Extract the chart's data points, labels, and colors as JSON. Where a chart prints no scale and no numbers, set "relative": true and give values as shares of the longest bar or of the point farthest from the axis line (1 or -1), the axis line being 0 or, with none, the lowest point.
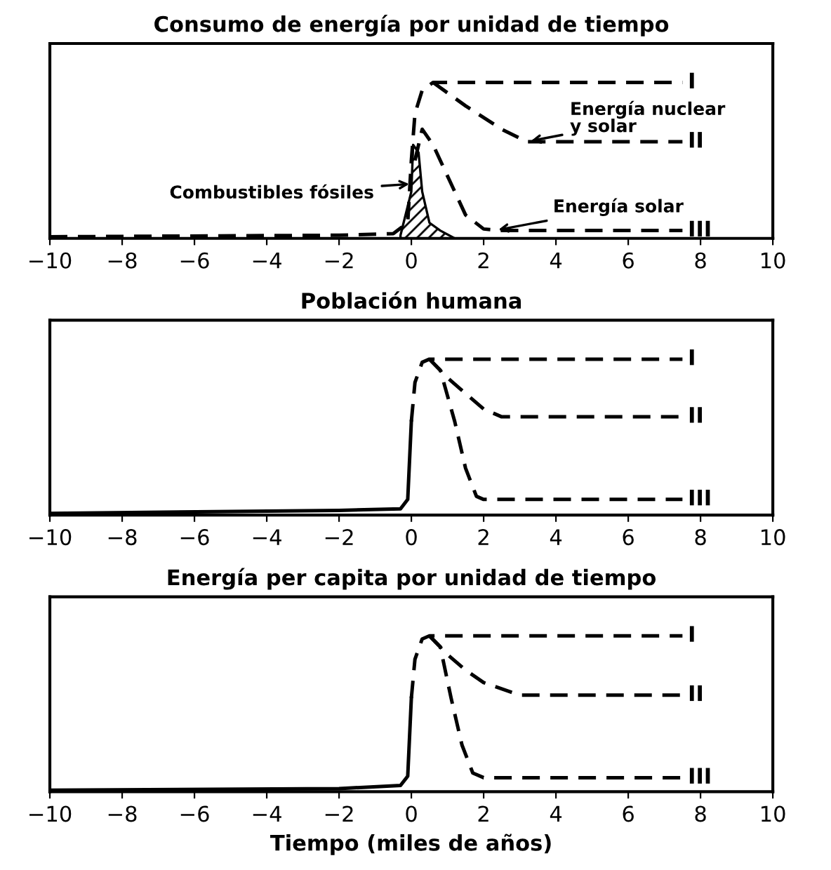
{
  "chart_data": [
    {
      "type": "line",
      "title": "Consumo de energía por unidad de tiempo",
      "relative": true,
      "xlim": [
        -10,
        10
      ],
      "xticks": [
        -10,
        -8,
        -6,
        -4,
        -2,
        0,
        2,
        4,
        6,
        8,
        10
      ],
      "legend": false,
      "line_style": "dashed",
      "grid": false,
      "series": [
        {
          "type": "area",
          "color": "#000000",
          "x": [
            -0.3,
            0,
            0.05,
            0.2,
            0.3,
            0.5,
            0.8,
            1.2
          ],
          "values": [
            0.02,
            0.3,
            0.6,
            0.55,
            0.3,
            0.1,
            0.05,
            0
          ]
        },
        {
          "name": "I",
          "color": "#000000",
          "x": [
            -10,
            -2,
            -0.5,
            -0.1,
            0,
            0.1,
            0.3,
            0.6,
            7.5
          ],
          "values": [
            0.01,
            0.02,
            0.03,
            0.1,
            0.5,
            0.8,
            0.95,
            1,
            1
          ]
        },
        {
          "name": "II",
          "color": "#000000",
          "x": [
            0.6,
            1.5,
            2.5,
            3.2,
            7.5
          ],
          "values": [
            1,
            0.85,
            0.7,
            0.62,
            0.62
          ]
        },
        {
          "name": "III",
          "color": "#000000",
          "x": [
            0.1,
            0.3,
            0.6,
            1,
            1.5,
            2,
            2.5,
            7.5
          ],
          "values": [
            0.5,
            0.7,
            0.6,
            0.4,
            0.15,
            0.06,
            0.05,
            0.05
          ]
        }
      ],
      "annotations": [
        {
          "text": "Energía nuclear\ny solar",
          "x": 3.2,
          "y": 0.62
        },
        {
          "text": "Combustibles fósiles",
          "x": 0.05,
          "y": 0.35
        },
        {
          "text": "Energía solar",
          "x": 2.3,
          "y": 0.05
        }
      ]
    },
    {
      "type": "line",
      "title": "Población humana",
      "relative": true,
      "xlim": [
        -10,
        10
      ],
      "xticks": [
        -10,
        -8,
        -6,
        -4,
        -2,
        0,
        2,
        4,
        6,
        8,
        10
      ],
      "legend": false,
      "line_style": "dashed",
      "grid": false,
      "series": [
        {
          "color": "#000000",
          "line_style": "solid",
          "x": [
            -10,
            -2,
            -0.3,
            -0.1,
            0
          ],
          "values": [
            0.01,
            0.03,
            0.04,
            0.1,
            0.6
          ]
        },
        {
          "name": "I",
          "color": "#000000",
          "x": [
            0,
            0.1,
            0.3,
            0.5,
            7.5
          ],
          "values": [
            0.6,
            0.85,
            0.98,
            1,
            1
          ]
        },
        {
          "name": "II",
          "color": "#000000",
          "x": [
            0.5,
            1,
            1.5,
            2,
            2.5,
            7.5
          ],
          "values": [
            1,
            0.88,
            0.78,
            0.68,
            0.63,
            0.63
          ]
        },
        {
          "name": "III",
          "color": "#000000",
          "x": [
            0.5,
            0.8,
            1.2,
            1.5,
            1.8,
            2,
            7.5
          ],
          "values": [
            1,
            0.93,
            0.6,
            0.3,
            0.12,
            0.1,
            0.1
          ]
        }
      ]
    },
    {
      "type": "line",
      "title": "Energía per capita por unidad de tiempo",
      "xlabel": "Tiempo (miles de años)",
      "relative": true,
      "xlim": [
        -10,
        10
      ],
      "xticks": [
        -10,
        -8,
        -6,
        -4,
        -2,
        0,
        2,
        4,
        6,
        8,
        10
      ],
      "legend": false,
      "line_style": "dashed",
      "grid": false,
      "series": [
        {
          "color": "#000000",
          "line_style": "solid",
          "x": [
            -10,
            -2,
            -0.3,
            -0.1,
            0
          ],
          "values": [
            0.01,
            0.02,
            0.04,
            0.1,
            0.6
          ]
        },
        {
          "name": "I",
          "color": "#000000",
          "x": [
            0,
            0.1,
            0.3,
            0.5,
            7.5
          ],
          "values": [
            0.6,
            0.85,
            0.98,
            1,
            1
          ]
        },
        {
          "name": "II",
          "color": "#000000",
          "x": [
            0.5,
            1,
            1.5,
            2,
            3,
            7.5
          ],
          "values": [
            1,
            0.88,
            0.78,
            0.7,
            0.62,
            0.62
          ]
        },
        {
          "name": "III",
          "color": "#000000",
          "x": [
            0.5,
            0.8,
            1.1,
            1.4,
            1.7,
            2,
            7.5
          ],
          "values": [
            1,
            0.93,
            0.6,
            0.3,
            0.12,
            0.09,
            0.09
          ]
        }
      ]
    }
  ]
}
